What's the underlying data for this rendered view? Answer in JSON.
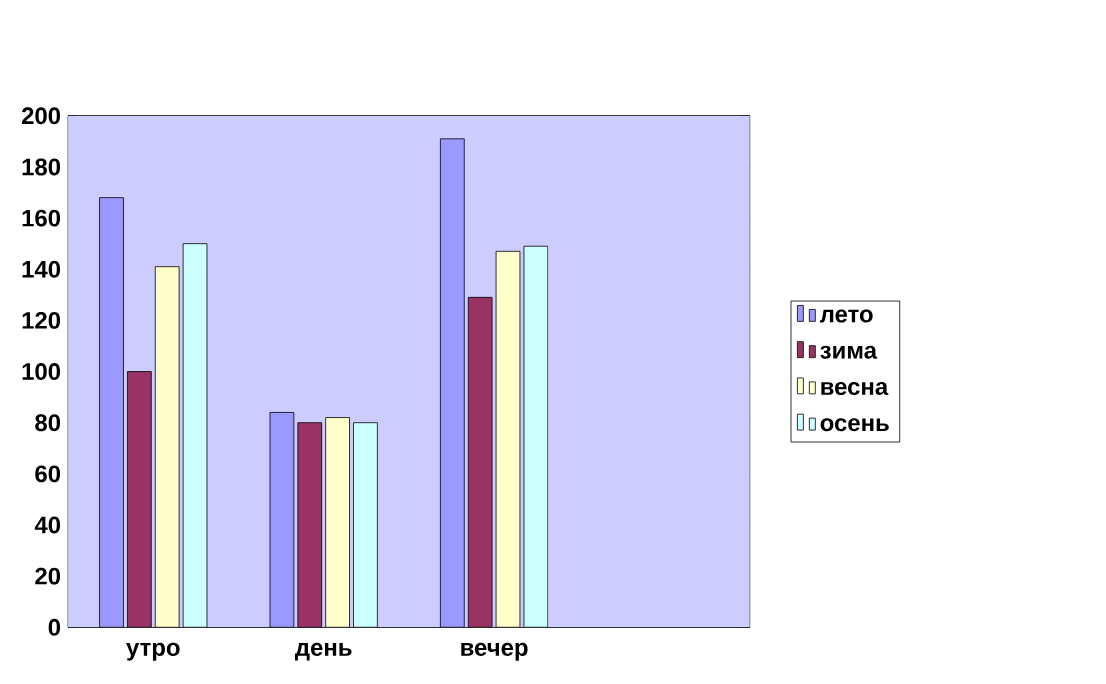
{
  "chart_data": {
    "type": "bar",
    "categories": [
      "утро",
      "день",
      "вечер",
      null
    ],
    "series": [
      {
        "name": "лето",
        "color": "#9999ff",
        "values": [
          168,
          84,
          191,
          null
        ]
      },
      {
        "name": "зима",
        "color": "#993366",
        "values": [
          100,
          80,
          129,
          null
        ]
      },
      {
        "name": "весна",
        "color": "#ffffcc",
        "values": [
          141,
          82,
          147,
          null
        ]
      },
      {
        "name": "осень",
        "color": "#ccffff",
        "values": [
          150,
          80,
          149,
          null
        ]
      }
    ],
    "ylim": [
      0,
      200
    ],
    "yticks": [
      0,
      20,
      40,
      60,
      80,
      100,
      120,
      140,
      160,
      180,
      200
    ],
    "grid": "y",
    "legend": "right"
  }
}
